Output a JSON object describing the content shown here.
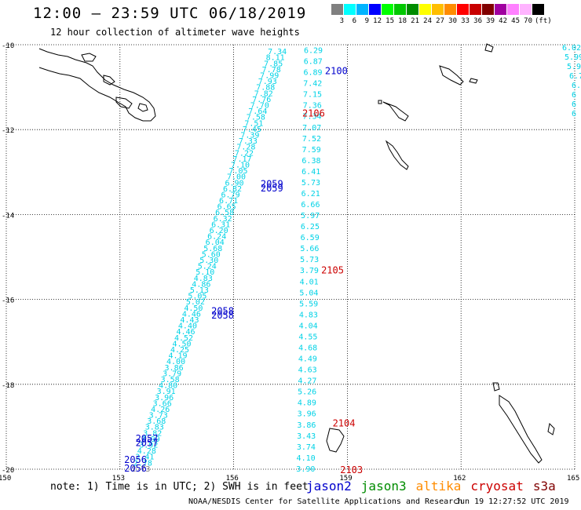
{
  "title": "12:00 – 23:59 UTC 06/18/2019",
  "subtitle": "12 hour collection of altimeter wave heights",
  "colorbar": {
    "colors": [
      "#808080",
      "#00ffff",
      "#00b4ff",
      "#0000ff",
      "#00ff00",
      "#00c800",
      "#008c00",
      "#ffff00",
      "#ffbe00",
      "#ff8c00",
      "#ff0000",
      "#c80000",
      "#800000",
      "#a000a0",
      "#ff80ff",
      "#ffb4ff",
      "#000000"
    ],
    "labels": [
      "3",
      "6",
      "9",
      "12",
      "15",
      "18",
      "21",
      "24",
      "27",
      "30",
      "33",
      "36",
      "39",
      "42",
      "45",
      "70"
    ],
    "unit": "(ft)"
  },
  "axes": {
    "lat_labels": [
      "-10",
      "-12",
      "-14",
      "-16",
      "-18",
      "-20"
    ],
    "lon_labels": [
      "150",
      "153",
      "156",
      "159",
      "162",
      "165"
    ]
  },
  "tracks": {
    "track_a_values": [
      "2.73",
      "2.78",
      "3.41",
      "4.28",
      "3.92",
      "3.99",
      "3.82",
      "3.83",
      "3.68",
      "3.73",
      "4.26",
      "3.66",
      "3.96",
      "3.91",
      "4.80",
      "3.58",
      "3.79",
      "3.86",
      "4.00",
      "4.19",
      "4.25",
      "4.50",
      "4.52",
      "4.46",
      "4.40",
      "4.43",
      "4.46",
      "4.50",
      "5.02",
      "5.05",
      "5.13",
      "4.86",
      "4.83",
      "5.10",
      "5.24",
      "5.30",
      "5.60",
      "5.68",
      "6.04",
      "6.24",
      "6.20",
      "6.31",
      "6.32",
      "6.58",
      "6.65",
      "6.71",
      "6.79",
      "6.82",
      "6.90",
      "7.00",
      "7.05",
      "7.10",
      "7.17",
      "7.22",
      "7.28",
      "7.33",
      "7.39",
      "7.45",
      "7.51",
      "7.58",
      "7.64",
      "7.70",
      "7.76",
      "7.82",
      "7.88",
      "7.93",
      "7.99",
      "7.78",
      "7.85",
      "8.11",
      "7.34"
    ],
    "track_b_values": [
      "6.29",
      "6.87",
      "6.89",
      "7.42",
      "7.15",
      "7.36",
      "7.34",
      "7.07",
      "7.52",
      "7.59",
      "6.38",
      "6.41",
      "5.73",
      "6.21",
      "6.66",
      "5.97",
      "6.25",
      "6.59",
      "5.66",
      "5.73",
      "3.79",
      "4.01",
      "5.04",
      "5.59",
      "4.83",
      "4.04",
      "4.55",
      "4.68",
      "4.49",
      "4.63",
      "4.27",
      "5.26",
      "4.89",
      "3.96",
      "3.86",
      "3.43",
      "3.74",
      "4.10",
      "3.90"
    ],
    "right_edge_values": [
      "6.02",
      "5.99",
      "5.9",
      "6.7",
      "6.",
      "6",
      "6",
      "6"
    ],
    "track_a_labels": [
      {
        "text": "2056",
        "lon": 153.4,
        "lat": -19.76
      },
      {
        "text": "2056",
        "lon": 153.4,
        "lat": -19.96
      },
      {
        "text": "2057",
        "lon": 153.7,
        "lat": -19.26
      },
      {
        "text": "2057",
        "lon": 153.7,
        "lat": -19.36
      },
      {
        "text": "2058",
        "lon": 155.7,
        "lat": -16.26
      },
      {
        "text": "2058",
        "lon": 155.7,
        "lat": -16.36
      },
      {
        "text": "2059",
        "lon": 157.0,
        "lat": -13.26
      },
      {
        "text": "2059",
        "lon": 157.0,
        "lat": -13.36
      },
      {
        "text": "2100",
        "lon": 158.7,
        "lat": -10.6
      }
    ],
    "track_b_labels": [
      {
        "text": "2106",
        "lon": 158.1,
        "lat": -11.6
      },
      {
        "text": "2105",
        "lon": 158.6,
        "lat": -15.3
      },
      {
        "text": "2104",
        "lon": 158.9,
        "lat": -18.9
      },
      {
        "text": "2103",
        "lon": 159.1,
        "lat": -20.0
      }
    ]
  },
  "note": "note: 1) Time is in UTC; 2) SWH is in feet",
  "legend": [
    {
      "text": "jason2",
      "color": "#0000cc"
    },
    {
      "text": "jason3",
      "color": "#008c00"
    },
    {
      "text": "altika",
      "color": "#ff8c00"
    },
    {
      "text": "cryosat",
      "color": "#cc0000"
    },
    {
      "text": "s3a",
      "color": "#800000"
    }
  ],
  "footer": {
    "credit": "NOAA/NESDIS Center for Satellite Applications and Research",
    "timestamp": "Jun 19 12:27:52 UTC 2019"
  }
}
